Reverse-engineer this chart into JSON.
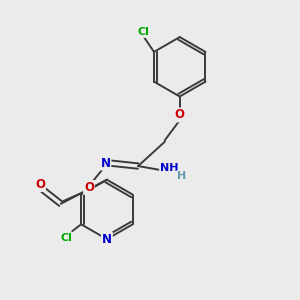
{
  "background_color": "#ebebeb",
  "bond_color": "#3a3a3a",
  "atom_colors": {
    "C": "#3a3a3a",
    "N": "#0000cc",
    "O": "#cc0000",
    "Cl": "#00aa00",
    "H": "#6699aa"
  },
  "figsize": [
    3.0,
    3.0
  ],
  "dpi": 100
}
